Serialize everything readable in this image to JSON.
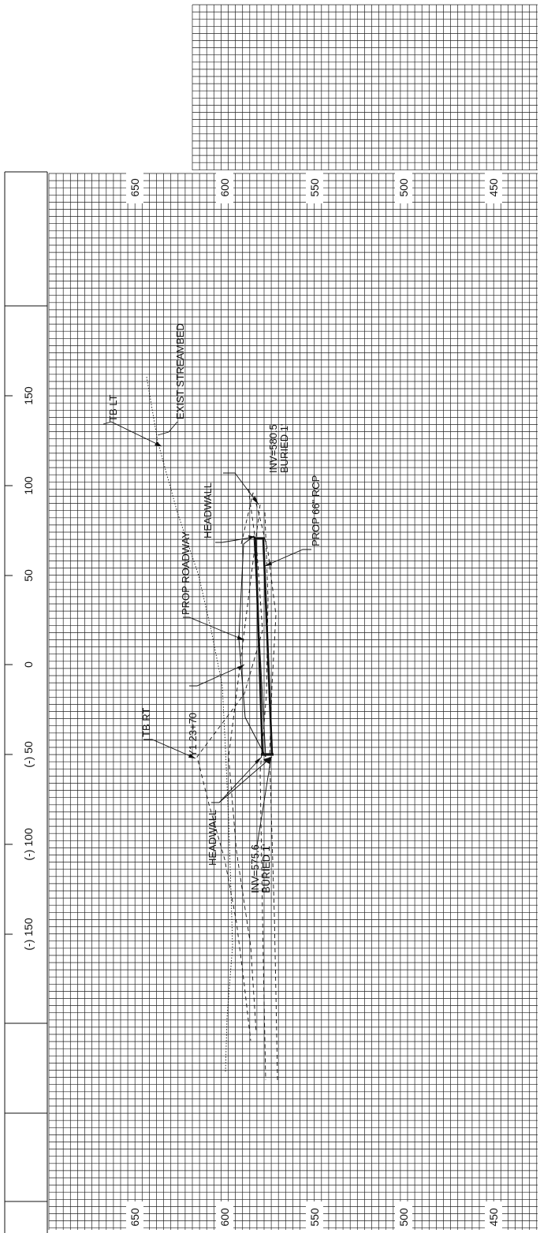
{
  "sheet": {
    "ink_color": "#111111",
    "grid_color": "#222222",
    "paper_color": "#ffffff"
  },
  "elevation_axis": {
    "top_labels": [
      "650",
      "600",
      "550",
      "500",
      "450"
    ],
    "bottom_labels": [
      "650",
      "600",
      "550",
      "500",
      "450"
    ]
  },
  "station_axis": {
    "labels": [
      "150",
      "100",
      "50",
      "0",
      "(-) 50",
      "(-) 100",
      "(-) 150"
    ]
  },
  "annotations": {
    "tb_lt": "TB LT",
    "exist_streambed": "EXIST STREAMBED",
    "inv_upper": "INV=580.5",
    "buried_upper": "BURIED 1'",
    "headwall_upper": "HEADWALL",
    "prop_rcp": "PROP 66\" RCP",
    "prop_roadway": "PROP ROADWAY",
    "tb_rt": "TB RT",
    "station_ref": "Y1 23+70",
    "headwall_lower": "HEADWALL",
    "inv_lower": "INV=575.6",
    "buried_lower": "BURIED 1'"
  }
}
